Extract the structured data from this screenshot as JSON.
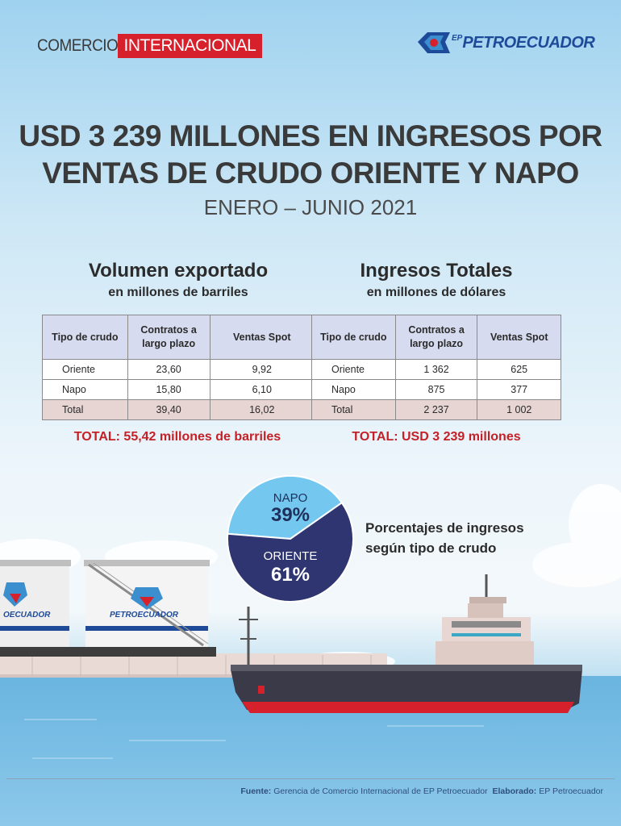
{
  "header": {
    "brand_part1": "COMERCIO",
    "brand_part2": "INTERNACIONAL",
    "logo_prefix": "EP",
    "logo_name": "PETROECUADOR"
  },
  "title": {
    "line1": "USD 3 239 MILLONES EN INGRESOS POR",
    "line2": "VENTAS DE CRUDO ORIENTE Y NAPO",
    "period": "ENERO – JUNIO 2021"
  },
  "colors": {
    "accent_red": "#d6212c",
    "napo": "#74c8f0",
    "oriente": "#2e3570",
    "header_cell": "#d6dbef",
    "total_cell": "#e6d5d3"
  },
  "volume": {
    "title": "Volumen exportado",
    "subtitle": "en millones de barriles",
    "headers": [
      "Tipo de crudo",
      "Contratos a largo plazo",
      "Ventas Spot"
    ],
    "rows": [
      [
        "Oriente",
        "23,60",
        "9,92"
      ],
      [
        "Napo",
        "15,80",
        "6,10"
      ],
      [
        "Total",
        "39,40",
        "16,02"
      ]
    ],
    "total_text": "TOTAL: 55,42 millones de barriles"
  },
  "revenue": {
    "title": "Ingresos Totales",
    "subtitle": "en millones de dólares",
    "headers": [
      "Tipo de crudo",
      "Contratos a largo plazo",
      "Ventas Spot"
    ],
    "rows": [
      [
        "Oriente",
        "1 362",
        "625"
      ],
      [
        "Napo",
        "875",
        "377"
      ],
      [
        "Total",
        "2 237",
        "1 002"
      ]
    ],
    "total_text": "TOTAL: USD 3 239 millones"
  },
  "chart_data": {
    "type": "pie",
    "title": "Porcentajes de ingresos según tipo de crudo",
    "slices": [
      {
        "label": "NAPO",
        "value": 39,
        "value_label": "39%",
        "color": "#74c8f0"
      },
      {
        "label": "ORIENTE",
        "value": 61,
        "value_label": "61%",
        "color": "#2e3570"
      }
    ]
  },
  "illustration": {
    "tank_logo_text": "PETROECUADOR",
    "tank_logo_text_partial": "OECUADOR"
  },
  "footer": {
    "source_label": "Fuente:",
    "source_value": "Gerencia de Comercio Internacional de EP Petroecuador",
    "made_label": "Elaborado:",
    "made_value": "EP Petroecuador"
  }
}
